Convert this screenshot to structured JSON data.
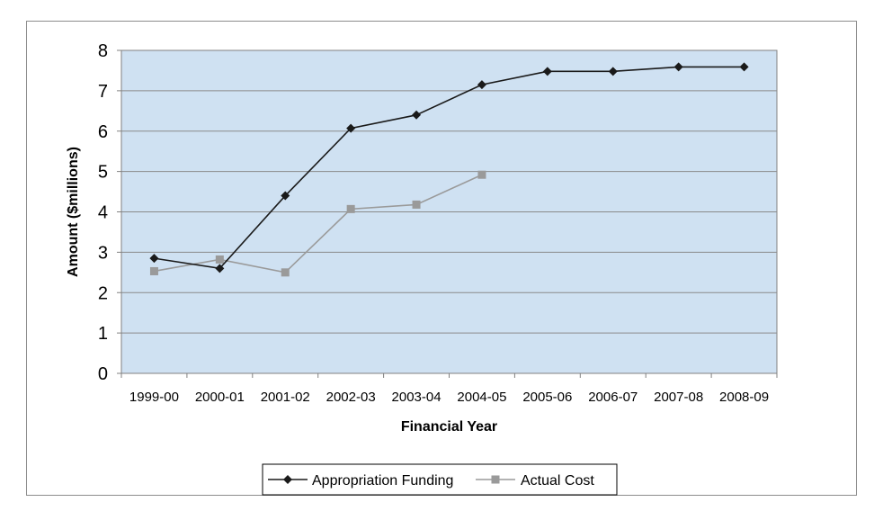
{
  "chart_data": {
    "type": "line",
    "title": "",
    "xlabel": "Financial Year",
    "ylabel": "Amount ($millions)",
    "categories": [
      "1999-00",
      "2000-01",
      "2001-02",
      "2002-03",
      "2003-04",
      "2004-05",
      "2005-06",
      "2006-07",
      "2007-08",
      "2008-09"
    ],
    "ylim": [
      0,
      8
    ],
    "yticks": [
      0,
      1,
      2,
      3,
      4,
      5,
      6,
      7,
      8
    ],
    "grid": true,
    "legend_position": "bottom",
    "plot_background": "#cfe1f2",
    "series": [
      {
        "name": "Appropriation Funding",
        "color": "#1a1a1a",
        "marker": "diamond",
        "values": [
          2.85,
          2.6,
          4.4,
          6.07,
          6.4,
          7.15,
          7.48,
          7.48,
          7.59,
          7.59
        ]
      },
      {
        "name": "Actual Cost",
        "color": "#9a9a9a",
        "marker": "square",
        "values": [
          2.53,
          2.82,
          2.5,
          4.07,
          4.18,
          4.92,
          null,
          null,
          null,
          null
        ]
      }
    ]
  }
}
